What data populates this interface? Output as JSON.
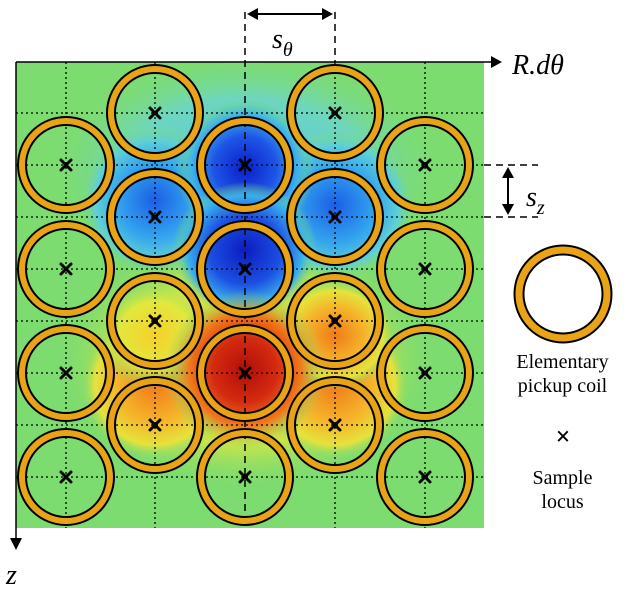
{
  "axes": {
    "horizontal_label": "R.dθ",
    "vertical_label": "z"
  },
  "spacing": {
    "s_theta_label": "s",
    "s_theta_sub": "θ",
    "s_z_label": "s",
    "s_z_sub": "z"
  },
  "legend": {
    "coil_label_line1": "Elementary",
    "coil_label_line2": "pickup coil",
    "sample_marker": "×",
    "sample_label_line1": "Sample",
    "sample_label_line2": "locus"
  },
  "colors": {
    "coil_ring_fill": "#e8a317",
    "coil_ring_stroke": "#000000",
    "field_background": "#7ddc6f",
    "negative_extreme": "#0a22c8",
    "positive_extreme": "#b40f0a",
    "grid_line": "#000000"
  },
  "field_extremes": {
    "negative_core": "deep blue",
    "positive_core": "dark red"
  }
}
